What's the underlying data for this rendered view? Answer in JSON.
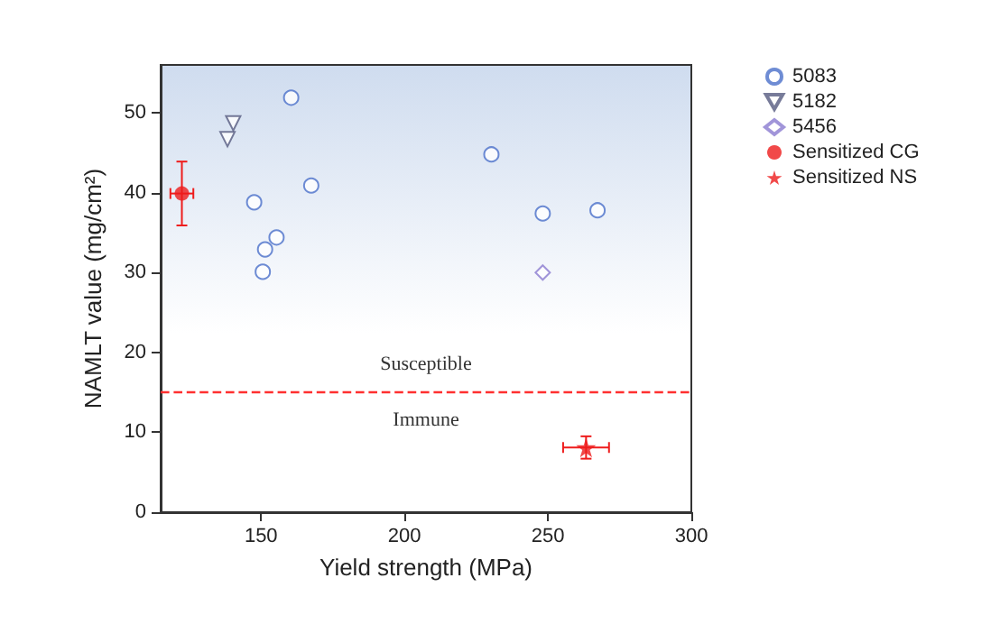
{
  "chart_data": {
    "type": "scatter",
    "xlabel": "Yield strength (MPa)",
    "ylabel": "NAMLT value (mg/cm²)",
    "xlim": [
      115,
      300
    ],
    "xticks": [
      150,
      200,
      250,
      300
    ],
    "ylim": [
      0,
      56
    ],
    "yticks": [
      0,
      10,
      20,
      30,
      40,
      50
    ],
    "grid": false,
    "legend": "right",
    "series": [
      {
        "name": "5083",
        "color": "#4a6fc9",
        "marker": "circle",
        "x": [
          160.5,
          147.6,
          167.5,
          150.6,
          151.4,
          155.4,
          230.3,
          248.2,
          267.3
        ],
        "values": [
          51.9,
          38.8,
          40.9,
          30.1,
          32.9,
          34.4,
          44.8,
          37.4,
          37.8
        ]
      },
      {
        "name": "5182",
        "color": "#555a80",
        "marker": "triangle",
        "x": [
          140.3,
          138.3
        ],
        "values": [
          48.7,
          46.7
        ]
      },
      {
        "name": "5456",
        "color": "#8a7ad0",
        "marker": "diamond",
        "x": [
          248.2
        ],
        "values": [
          30
        ]
      },
      {
        "name": "Sensitized CG",
        "color": "#ee1c1c",
        "marker": "circle",
        "x": [
          122.4
        ],
        "values": [
          39.9
        ],
        "errors": [
          4
        ],
        "xerrors": [
          4
        ]
      },
      {
        "name": "Sensitized NS",
        "color": "#ee1c1c",
        "marker": "star",
        "x": [
          263.3
        ],
        "values": [
          8.1
        ],
        "errors": [
          1.4
        ],
        "xerrors": [
          8
        ]
      }
    ],
    "ref_lines": [
      {
        "axis": "y",
        "value": 15,
        "color": "#ff3030",
        "line_style": "dashed"
      }
    ],
    "annotations": [
      "Susceptible",
      "Immune"
    ]
  }
}
